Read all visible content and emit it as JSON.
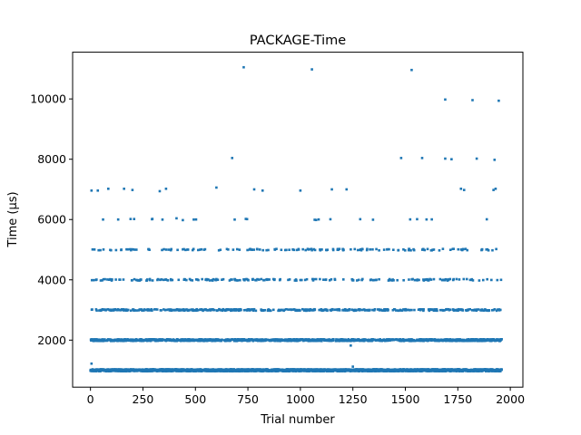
{
  "chart_data": {
    "type": "scatter",
    "title": "PACKAGE-Time",
    "xlabel": "Trial number",
    "ylabel": "Time (µs)",
    "xlim": [
      -85,
      2060
    ],
    "ylim": [
      440,
      11550
    ],
    "xticks": [
      0,
      250,
      500,
      750,
      1000,
      1250,
      1500,
      1750,
      2000
    ],
    "yticks": [
      2000,
      4000,
      6000,
      8000,
      10000
    ],
    "grid": false,
    "legend": "none",
    "marker_color": "#1f77b4",
    "num_trials": 1960,
    "levels_us": [
      1000,
      2000,
      3000,
      4000,
      5000,
      6000,
      7000,
      8000,
      10000,
      11000
    ],
    "level_point_counts": {
      "1000": "dense, nearly every trial",
      "2000": "dense"
    },
    "outliers": [
      {
        "x": 5,
        "y": 1220
      },
      {
        "x": 5,
        "y": 6960
      },
      {
        "x": 35,
        "y": 6960
      },
      {
        "x": 60,
        "y": 6000
      },
      {
        "x": 85,
        "y": 7020
      },
      {
        "x": 160,
        "y": 7020
      },
      {
        "x": 200,
        "y": 6980
      },
      {
        "x": 295,
        "y": 6020
      },
      {
        "x": 330,
        "y": 6940
      },
      {
        "x": 360,
        "y": 7020
      },
      {
        "x": 410,
        "y": 6040
      },
      {
        "x": 440,
        "y": 5980
      },
      {
        "x": 600,
        "y": 7060
      },
      {
        "x": 675,
        "y": 8040
      },
      {
        "x": 730,
        "y": 11050
      },
      {
        "x": 740,
        "y": 6020
      },
      {
        "x": 780,
        "y": 7000
      },
      {
        "x": 820,
        "y": 6960
      },
      {
        "x": 1000,
        "y": 6960
      },
      {
        "x": 1055,
        "y": 10980
      },
      {
        "x": 1150,
        "y": 7000
      },
      {
        "x": 1220,
        "y": 7000
      },
      {
        "x": 1240,
        "y": 1820
      },
      {
        "x": 1250,
        "y": 1120
      },
      {
        "x": 1480,
        "y": 8040
      },
      {
        "x": 1530,
        "y": 10960
      },
      {
        "x": 1580,
        "y": 8040
      },
      {
        "x": 1690,
        "y": 9980
      },
      {
        "x": 1690,
        "y": 8020
      },
      {
        "x": 1720,
        "y": 8000
      },
      {
        "x": 1765,
        "y": 7020
      },
      {
        "x": 1780,
        "y": 6980
      },
      {
        "x": 1820,
        "y": 9960
      },
      {
        "x": 1840,
        "y": 8020
      },
      {
        "x": 1920,
        "y": 6980
      },
      {
        "x": 1930,
        "y": 7020
      },
      {
        "x": 1925,
        "y": 7980
      },
      {
        "x": 1945,
        "y": 9940
      }
    ]
  }
}
